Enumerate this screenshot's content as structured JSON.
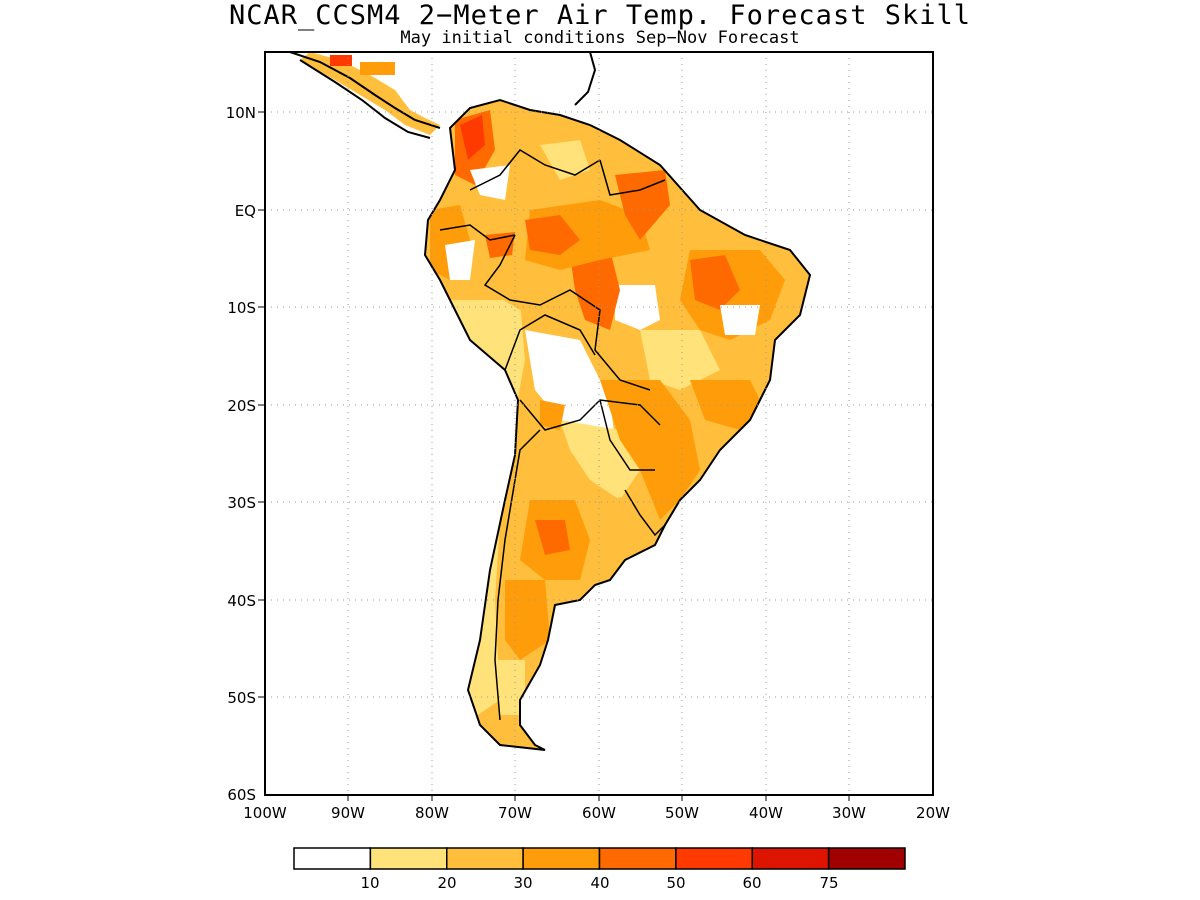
{
  "title": "NCAR_CCSM4 2−Meter Air Temp. Forecast Skill",
  "subtitle": "May initial conditions  Sep−Nov Forecast",
  "lat_labels": [
    "10N",
    "EQ",
    "10S",
    "20S",
    "30S",
    "40S",
    "50S",
    "60S"
  ],
  "lon_labels": [
    "100W",
    "90W",
    "80W",
    "70W",
    "60W",
    "50W",
    "40W",
    "30W",
    "20W"
  ],
  "colorbar": {
    "labels": [
      "10",
      "20",
      "30",
      "40",
      "50",
      "60",
      "75"
    ],
    "colors": [
      "#ffffff",
      "#ffe27a",
      "#ffbe3c",
      "#ff9c0a",
      "#ff6a00",
      "#ff3a00",
      "#dd1400",
      "#a00000"
    ]
  },
  "extent": {
    "lon_min": -100,
    "lon_max": -20,
    "lat_min": -60,
    "lat_max": 6
  },
  "grid": "dotted",
  "colormap_legend_position": "bottom"
}
